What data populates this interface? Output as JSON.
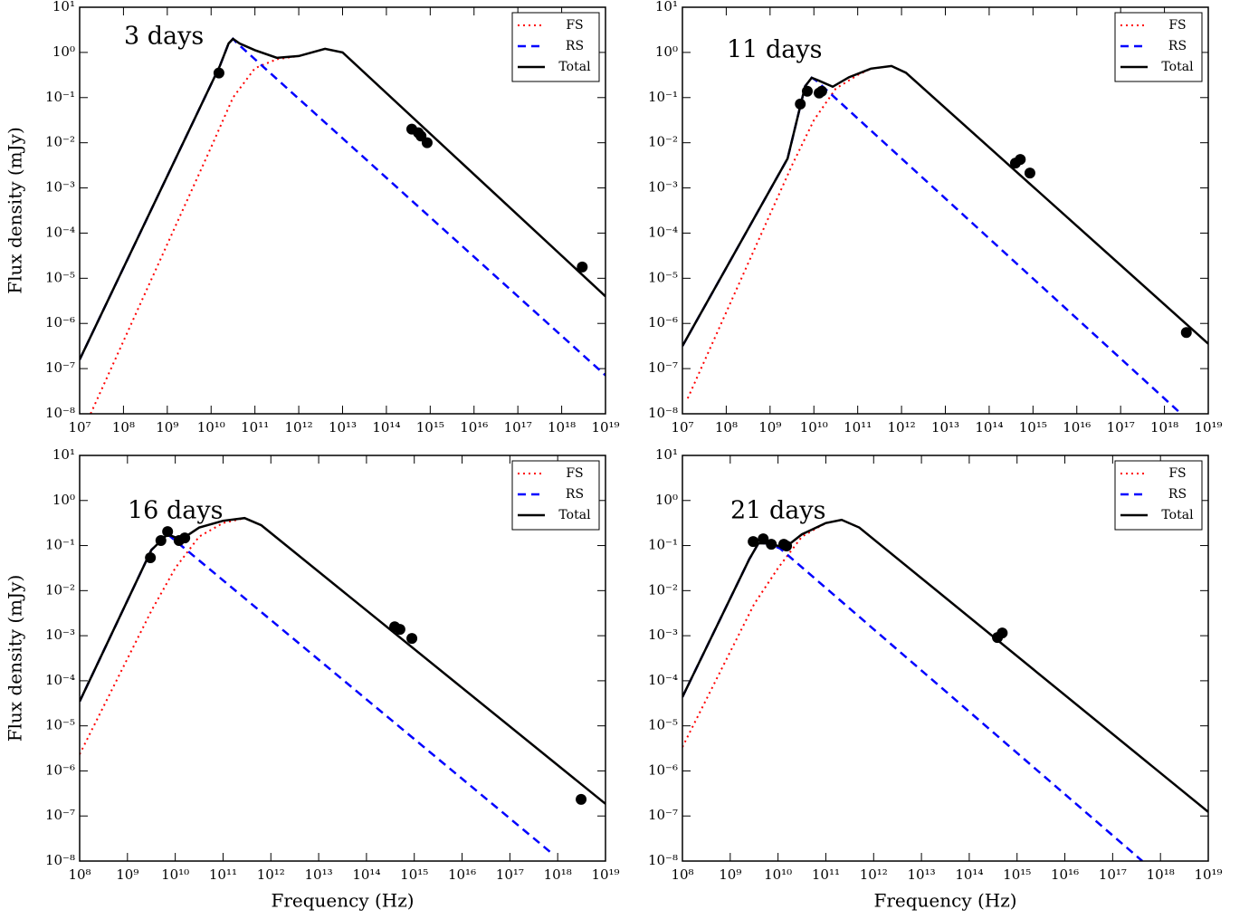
{
  "chart_data": [
    {
      "type": "line",
      "annotation": "3 days",
      "ylabel": "Flux density (mJy)",
      "xscale": "log",
      "yscale": "log",
      "legend": "upper right",
      "xlim": [
        10000000.0,
        1e+19
      ],
      "ylim": [
        1e-08,
        10
      ],
      "xticks": [
        {
          "value": 10000000.0,
          "label": "10⁷"
        },
        {
          "value": 100000000.0,
          "label": "10⁸"
        },
        {
          "value": 1000000000.0,
          "label": "10⁹"
        },
        {
          "value": 10000000000.0,
          "label": "10¹⁰"
        },
        {
          "value": 100000000000.0,
          "label": "10¹¹"
        },
        {
          "value": 1000000000000.0,
          "label": "10¹²"
        },
        {
          "value": 10000000000000.0,
          "label": "10¹³"
        },
        {
          "value": 100000000000000.0,
          "label": "10¹⁴"
        },
        {
          "value": 1000000000000000.0,
          "label": "10¹⁵"
        },
        {
          "value": 1e+16,
          "label": "10¹⁶"
        },
        {
          "value": 1e+17,
          "label": "10¹⁷"
        },
        {
          "value": 1e+18,
          "label": "10¹⁸"
        },
        {
          "value": 1e+19,
          "label": "10¹⁹"
        }
      ],
      "yticks": [
        {
          "value": 1e-08,
          "label": "10⁻⁸"
        },
        {
          "value": 1e-07,
          "label": "10⁻⁷"
        },
        {
          "value": 1e-06,
          "label": "10⁻⁶"
        },
        {
          "value": 1e-05,
          "label": "10⁻⁵"
        },
        {
          "value": 0.0001,
          "label": "10⁻⁴"
        },
        {
          "value": 0.001,
          "label": "10⁻³"
        },
        {
          "value": 0.01,
          "label": "10⁻²"
        },
        {
          "value": 0.1,
          "label": "10⁻¹"
        },
        {
          "value": 1,
          "label": "10⁰"
        },
        {
          "value": 10,
          "label": "10¹"
        }
      ],
      "series": [
        {
          "name": "FS",
          "color": "#ff0000",
          "style": "dotted",
          "x": [
            17800000.0,
            10000000000.0,
            31600000000.0,
            100000000000.0,
            316000000000.0,
            1000000000000.0,
            3980000000000.0,
            10000000000000.0,
            1e+19
          ],
          "values": [
            1e-08,
            0.00794,
            0.1,
            0.447,
            0.708,
            0.83,
            1.2,
            1.0,
            3.98e-06
          ]
        },
        {
          "name": "RS",
          "color": "#0000ff",
          "style": "dashed",
          "x": [
            10000000.0,
            15800000000.0,
            25100000000.0,
            31600000000.0,
            39800000000.0,
            1e+19
          ],
          "values": [
            1.58e-07,
            0.5,
            1.58,
            2.0,
            1.58,
            7.08e-08
          ]
        },
        {
          "name": "Total",
          "color": "#000000",
          "style": "solid",
          "x": [
            10000000.0,
            15800000000.0,
            25100000000.0,
            31600000000.0,
            44700000000.0,
            100000000000.0,
            316000000000.0,
            1000000000000.0,
            3980000000000.0,
            10000000000000.0,
            1e+19
          ],
          "values": [
            1.58e-07,
            0.5,
            1.58,
            2.0,
            1.58,
            1.12,
            0.76,
            0.83,
            1.2,
            1.0,
            3.98e-06
          ]
        }
      ],
      "points": {
        "color": "#000000",
        "x": [
          15100000000.0,
          380000000000000.0,
          537000000000000.0,
          617000000000000.0,
          851000000000000.0,
          2.95e+18
        ],
        "values": [
          0.35,
          0.02,
          0.0166,
          0.0141,
          0.01,
          1.78e-05
        ]
      }
    },
    {
      "type": "line",
      "annotation": "11 days",
      "xscale": "log",
      "yscale": "log",
      "legend": "upper right",
      "xlim": [
        10000000.0,
        1e+19
      ],
      "ylim": [
        1e-08,
        10
      ],
      "xticks": [
        {
          "value": 10000000.0,
          "label": "10⁷"
        },
        {
          "value": 100000000.0,
          "label": "10⁸"
        },
        {
          "value": 1000000000.0,
          "label": "10⁹"
        },
        {
          "value": 10000000000.0,
          "label": "10¹⁰"
        },
        {
          "value": 100000000000.0,
          "label": "10¹¹"
        },
        {
          "value": 1000000000000.0,
          "label": "10¹²"
        },
        {
          "value": 10000000000000.0,
          "label": "10¹³"
        },
        {
          "value": 100000000000000.0,
          "label": "10¹⁴"
        },
        {
          "value": 1000000000000000.0,
          "label": "10¹⁵"
        },
        {
          "value": 1e+16,
          "label": "10¹⁶"
        },
        {
          "value": 1e+17,
          "label": "10¹⁷"
        },
        {
          "value": 1e+18,
          "label": "10¹⁸"
        },
        {
          "value": 1e+19,
          "label": "10¹⁹"
        }
      ],
      "yticks": [
        {
          "value": 1e-08,
          "label": "10⁻⁸"
        },
        {
          "value": 1e-07,
          "label": "10⁻⁷"
        },
        {
          "value": 1e-06,
          "label": "10⁻⁶"
        },
        {
          "value": 1e-05,
          "label": "10⁻⁵"
        },
        {
          "value": 0.0001,
          "label": "10⁻⁴"
        },
        {
          "value": 0.001,
          "label": "10⁻³"
        },
        {
          "value": 0.01,
          "label": "10⁻²"
        },
        {
          "value": 0.1,
          "label": "10⁻¹"
        },
        {
          "value": 1,
          "label": "10⁰"
        },
        {
          "value": 10,
          "label": "10¹"
        }
      ],
      "series": [
        {
          "name": "FS",
          "color": "#ff0000",
          "style": "dotted",
          "x": [
            13200000.0,
            3160000000.0,
            10000000000.0,
            31600000000.0,
            100000000000.0,
            200000000000.0,
            589000000000.0,
            1260000000000.0,
            1e+19
          ],
          "values": [
            2.19e-08,
            0.00316,
            0.0316,
            0.158,
            0.316,
            0.437,
            0.5,
            0.355,
            3.55e-07
          ]
        },
        {
          "name": "RS",
          "color": "#0000ff",
          "style": "dashed",
          "x": [
            10000000.0,
            2510000000.0,
            6310000000.0,
            8910000000.0,
            11200000000.0,
            2.4e+18
          ],
          "values": [
            3.16e-07,
            0.00447,
            0.178,
            0.275,
            0.24,
            1e-08
          ]
        },
        {
          "name": "Total",
          "color": "#000000",
          "style": "solid",
          "x": [
            10000000.0,
            2510000000.0,
            6310000000.0,
            8910000000.0,
            12600000000.0,
            26900000000.0,
            63100000000.0,
            200000000000.0,
            589000000000.0,
            1260000000000.0,
            1e+19
          ],
          "values": [
            3.16e-07,
            0.00447,
            0.178,
            0.275,
            0.24,
            0.174,
            0.282,
            0.437,
            0.5,
            0.355,
            3.55e-07
          ]
        }
      ],
      "points": {
        "color": "#000000",
        "x": [
          4900000000.0,
          7080000000.0,
          13200000000.0,
          15100000000.0,
          398000000000000.0,
          513000000000000.0,
          851000000000000.0,
          3.16e+18
        ],
        "values": [
          0.072,
          0.138,
          0.126,
          0.138,
          0.00355,
          0.00427,
          0.00214,
          6.31e-07
        ]
      }
    },
    {
      "type": "line",
      "annotation": "16 days",
      "xlabel": "Frequency (Hz)",
      "ylabel": "Flux density (mJy)",
      "xscale": "log",
      "yscale": "log",
      "legend": "upper right",
      "xlim": [
        100000000.0,
        1e+19
      ],
      "ylim": [
        1e-08,
        10
      ],
      "xticks": [
        {
          "value": 100000000.0,
          "label": "10⁸"
        },
        {
          "value": 1000000000.0,
          "label": "10⁹"
        },
        {
          "value": 10000000000.0,
          "label": "10¹⁰"
        },
        {
          "value": 100000000000.0,
          "label": "10¹¹"
        },
        {
          "value": 1000000000000.0,
          "label": "10¹²"
        },
        {
          "value": 10000000000000.0,
          "label": "10¹³"
        },
        {
          "value": 100000000000000.0,
          "label": "10¹⁴"
        },
        {
          "value": 1000000000000000.0,
          "label": "10¹⁵"
        },
        {
          "value": 1e+16,
          "label": "10¹⁶"
        },
        {
          "value": 1e+17,
          "label": "10¹⁷"
        },
        {
          "value": 1e+18,
          "label": "10¹⁸"
        },
        {
          "value": 1e+19,
          "label": "10¹⁹"
        }
      ],
      "yticks": [
        {
          "value": 1e-08,
          "label": "10⁻⁸"
        },
        {
          "value": 1e-07,
          "label": "10⁻⁷"
        },
        {
          "value": 1e-06,
          "label": "10⁻⁶"
        },
        {
          "value": 1e-05,
          "label": "10⁻⁵"
        },
        {
          "value": 0.0001,
          "label": "10⁻⁴"
        },
        {
          "value": 0.001,
          "label": "10⁻³"
        },
        {
          "value": 0.01,
          "label": "10⁻²"
        },
        {
          "value": 0.1,
          "label": "10⁻¹"
        },
        {
          "value": 1,
          "label": "10⁰"
        },
        {
          "value": 10,
          "label": "10¹"
        }
      ],
      "series": [
        {
          "name": "FS",
          "color": "#ff0000",
          "style": "dotted",
          "x": [
            100000000.0,
            3160000000.0,
            10000000000.0,
            31600000000.0,
            100000000000.0,
            282000000000.0,
            631000000000.0,
            1e+19
          ],
          "values": [
            2.34e-06,
            0.00355,
            0.0316,
            0.158,
            0.316,
            0.407,
            0.282,
            1.86e-07
          ]
        },
        {
          "name": "RS",
          "color": "#0000ff",
          "style": "dashed",
          "x": [
            100000000.0,
            3160000000.0,
            6920000000.0,
            7.76e+17
          ],
          "values": [
            3.47e-05,
            0.0794,
            0.178,
            1.45e-08
          ]
        },
        {
          "name": "Total",
          "color": "#000000",
          "style": "solid",
          "x": [
            100000000.0,
            3160000000.0,
            6920000000.0,
            13200000000.0,
            31600000000.0,
            100000000000.0,
            282000000000.0,
            631000000000.0,
            1e+19
          ],
          "values": [
            3.47e-05,
            0.0794,
            0.178,
            0.135,
            0.251,
            0.355,
            0.407,
            0.282,
            1.86e-07
          ]
        }
      ],
      "points": {
        "color": "#000000",
        "x": [
          3020000000.0,
          5010000000.0,
          6920000000.0,
          12000000000.0,
          15800000000.0,
          389000000000000.0,
          501000000000000.0,
          891000000000000.0,
          3.09e+18
        ],
        "values": [
          0.0537,
          0.129,
          0.204,
          0.129,
          0.148,
          0.00158,
          0.00138,
          0.000871,
          2.34e-07
        ]
      }
    },
    {
      "type": "line",
      "annotation": "21 days",
      "xlabel": "Frequency (Hz)",
      "xscale": "log",
      "yscale": "log",
      "legend": "upper right",
      "xlim": [
        100000000.0,
        1e+19
      ],
      "ylim": [
        1e-08,
        10
      ],
      "xticks": [
        {
          "value": 100000000.0,
          "label": "10⁸"
        },
        {
          "value": 1000000000.0,
          "label": "10⁹"
        },
        {
          "value": 10000000000.0,
          "label": "10¹⁰"
        },
        {
          "value": 100000000000.0,
          "label": "10¹¹"
        },
        {
          "value": 1000000000000.0,
          "label": "10¹²"
        },
        {
          "value": 10000000000000.0,
          "label": "10¹³"
        },
        {
          "value": 100000000000000.0,
          "label": "10¹⁴"
        },
        {
          "value": 1000000000000000.0,
          "label": "10¹⁵"
        },
        {
          "value": 1e+16,
          "label": "10¹⁶"
        },
        {
          "value": 1e+17,
          "label": "10¹⁷"
        },
        {
          "value": 1e+18,
          "label": "10¹⁸"
        },
        {
          "value": 1e+19,
          "label": "10¹⁹"
        }
      ],
      "yticks": [
        {
          "value": 1e-08,
          "label": "10⁻⁸"
        },
        {
          "value": 1e-07,
          "label": "10⁻⁷"
        },
        {
          "value": 1e-06,
          "label": "10⁻⁶"
        },
        {
          "value": 1e-05,
          "label": "10⁻⁵"
        },
        {
          "value": 0.0001,
          "label": "10⁻⁴"
        },
        {
          "value": 0.001,
          "label": "10⁻³"
        },
        {
          "value": 0.01,
          "label": "10⁻²"
        },
        {
          "value": 0.1,
          "label": "10⁻¹"
        },
        {
          "value": 1,
          "label": "10⁰"
        },
        {
          "value": 10,
          "label": "10¹"
        }
      ],
      "series": [
        {
          "name": "FS",
          "color": "#ff0000",
          "style": "dotted",
          "x": [
            100000000.0,
            3160000000.0,
            10000000000.0,
            31600000000.0,
            100000000000.0,
            214000000000.0,
            501000000000.0,
            1e+19
          ],
          "values": [
            3.39e-06,
            0.00501,
            0.0316,
            0.158,
            0.316,
            0.372,
            0.251,
            1.23e-07
          ]
        },
        {
          "name": "RS",
          "color": "#0000ff",
          "style": "dashed",
          "x": [
            100000000.0,
            2510000000.0,
            3890000000.0,
            6310000000.0,
            11200000000.0,
            4.17e+17
          ],
          "values": [
            4.37e-05,
            0.0501,
            0.112,
            0.112,
            0.0851,
            1e-08
          ]
        },
        {
          "name": "Total",
          "color": "#000000",
          "style": "solid",
          "x": [
            100000000.0,
            2510000000.0,
            3890000000.0,
            6310000000.0,
            11200000000.0,
            15800000000.0,
            31600000000.0,
            100000000000.0,
            214000000000.0,
            501000000000.0,
            1e+19
          ],
          "values": [
            4.37e-05,
            0.0501,
            0.112,
            0.112,
            0.0955,
            0.1,
            0.178,
            0.316,
            0.372,
            0.251,
            1.23e-07
          ]
        }
      ],
      "points": {
        "color": "#000000",
        "x": [
          3020000000.0,
          4900000000.0,
          7240000000.0,
          13200000000.0,
          15100000000.0,
          389000000000000.0,
          490000000000000.0
        ],
        "values": [
          0.123,
          0.141,
          0.107,
          0.107,
          0.0977,
          0.000912,
          0.00115
        ]
      }
    }
  ]
}
